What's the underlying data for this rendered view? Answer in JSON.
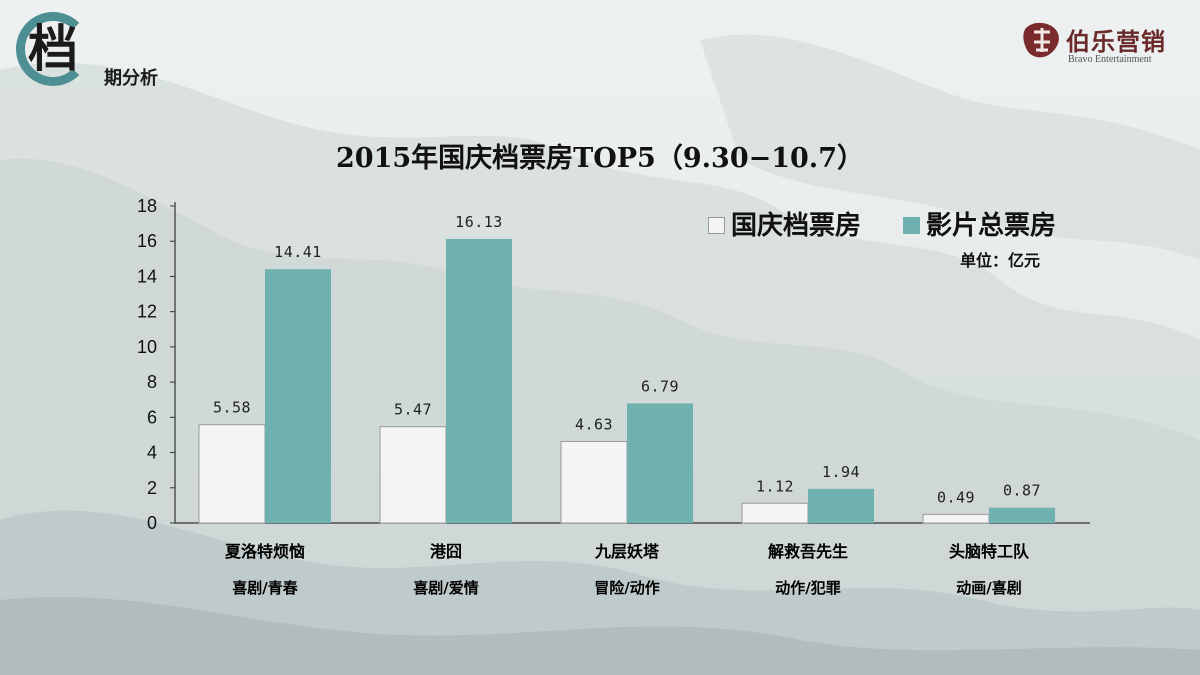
{
  "badge": {
    "char": "档",
    "text": "期分析"
  },
  "brand": {
    "name": "伯乐营销",
    "sub": "Bravo Entertainment"
  },
  "colors": {
    "holiday": "#f4f4f6",
    "total": "#6fb1ae",
    "accent": "#4e8f93"
  },
  "chart_data": {
    "type": "bar",
    "title": "2015年国庆档票房TOP5（9.30−10.7）",
    "unit_label": "单位：亿元",
    "categories": [
      "夏洛特烦恼",
      "港囧",
      "九层妖塔",
      "解救吾先生",
      "头脑特工队"
    ],
    "genres": [
      "喜剧/青春",
      "喜剧/爱情",
      "冒险/动作",
      "动作/犯罪",
      "动画/喜剧"
    ],
    "series": [
      {
        "name": "国庆档票房",
        "values": [
          5.58,
          5.47,
          4.63,
          1.12,
          0.49
        ],
        "labels": [
          "5.58",
          "5.47",
          "4.63",
          "1.12",
          "0.49"
        ]
      },
      {
        "name": "影片总票房",
        "values": [
          14.41,
          16.13,
          6.79,
          1.94,
          0.87
        ],
        "labels": [
          "14.41",
          "16.13",
          "6.79",
          "1.94",
          "0.87"
        ]
      }
    ],
    "ylim": [
      0,
      18
    ],
    "yticks": [
      0,
      2,
      4,
      6,
      8,
      10,
      12,
      14,
      16,
      18
    ],
    "legend": "top-right",
    "grid": false
  }
}
